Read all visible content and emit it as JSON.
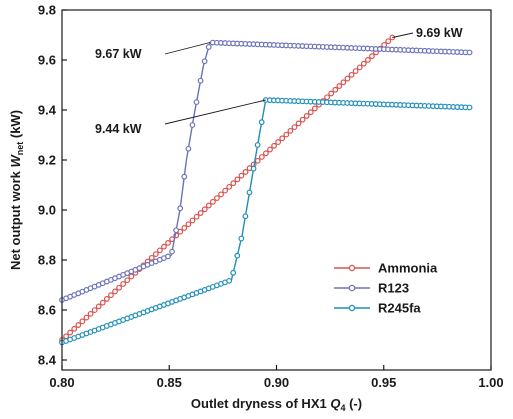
{
  "chart_data": {
    "type": "line",
    "xlabel_main": "Outlet dryness of HX1 ",
    "xlabel_sym": "Q",
    "xlabel_sub": "4",
    "xlabel_unit": " (-)",
    "ylabel_main": "Net output work ",
    "ylabel_sym": "W",
    "ylabel_sub": "net",
    "ylabel_unit": " (kW)",
    "xlim": [
      0.8,
      1.0
    ],
    "ylim": [
      8.36,
      9.8
    ],
    "x_ticks": [
      0.8,
      0.85,
      0.9,
      0.95,
      1.0
    ],
    "x_tick_labels": [
      "0.80",
      "0.85",
      "0.90",
      "0.95",
      "1.00"
    ],
    "y_ticks": [
      8.4,
      8.6,
      8.8,
      9.0,
      9.2,
      9.4,
      9.6,
      9.8
    ],
    "y_tick_labels": [
      "8.4",
      "8.6",
      "8.8",
      "9.0",
      "9.2",
      "9.4",
      "9.6",
      "9.8"
    ],
    "grid": false,
    "legend_position": "lower-right",
    "series": [
      {
        "name": "Ammonia",
        "color": "#d9534f",
        "points": [
          [
            0.8,
            8.48
          ],
          [
            0.954,
            9.69
          ]
        ]
      },
      {
        "name": "R123",
        "color": "#6b73b8",
        "points": [
          [
            0.8,
            8.64
          ],
          [
            0.851,
            8.82
          ],
          [
            0.855,
            9.0
          ],
          [
            0.858,
            9.2
          ],
          [
            0.862,
            9.4
          ],
          [
            0.866,
            9.58
          ],
          [
            0.869,
            9.67
          ],
          [
            0.99,
            9.63
          ]
        ]
      },
      {
        "name": "R245fa",
        "color": "#1f8fb8",
        "points": [
          [
            0.8,
            8.47
          ],
          [
            0.879,
            8.72
          ],
          [
            0.884,
            8.9
          ],
          [
            0.888,
            9.1
          ],
          [
            0.892,
            9.3
          ],
          [
            0.895,
            9.44
          ],
          [
            0.99,
            9.41
          ]
        ]
      }
    ],
    "annotations": [
      {
        "text": "9.67 kW",
        "point": [
          0.869,
          9.67
        ]
      },
      {
        "text": "9.44 kW",
        "point": [
          0.895,
          9.44
        ]
      },
      {
        "text": "9.69 kW",
        "point": [
          0.954,
          9.69
        ]
      }
    ]
  }
}
